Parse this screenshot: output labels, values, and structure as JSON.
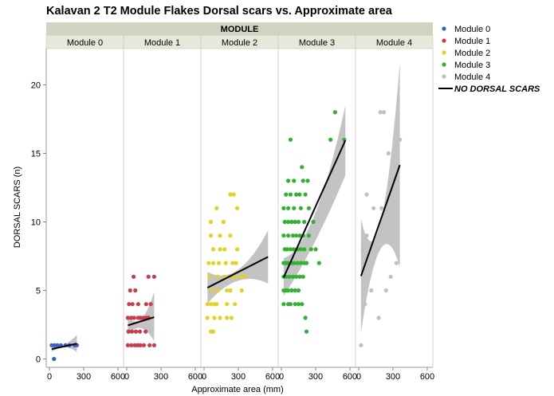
{
  "chart_data": {
    "type": "scatter",
    "title": "Kalavan 2 T2 Module Flakes Dorsal scars vs. Approximate area",
    "group_header": "MODULE",
    "xlabel": "Approximate area (mm)",
    "ylabel": "DORSAL SCARS (n)",
    "xlim": [
      0,
      750
    ],
    "ylim": [
      -0.5,
      23.5
    ],
    "x_ticks": [
      0,
      300,
      600
    ],
    "y_ticks": [
      0,
      5,
      10,
      15,
      20
    ],
    "grid": false,
    "legend_position": "right",
    "fit_legend_label": "NO DORSAL SCARS",
    "panels": [
      {
        "name": "Module 0",
        "color": "#3a5fcd",
        "points": [
          [
            40,
            0
          ],
          [
            20,
            1
          ],
          [
            45,
            1
          ],
          [
            70,
            1
          ],
          [
            100,
            1
          ],
          [
            140,
            1
          ],
          [
            175,
            1
          ],
          [
            220,
            1
          ],
          [
            240,
            1
          ]
        ],
        "fit": {
          "x0": 20,
          "x1": 240,
          "y0": 0.72,
          "y1": 1.12
        },
        "band": {
          "upper": [
            0.92,
            1.05,
            1.75
          ],
          "lower": [
            0.52,
            0.85,
            0.5
          ]
        }
      },
      {
        "name": "Module 1",
        "color": "#cd3a4a",
        "points": [
          [
            10,
            1
          ],
          [
            40,
            1
          ],
          [
            70,
            1
          ],
          [
            95,
            1
          ],
          [
            120,
            1
          ],
          [
            150,
            1
          ],
          [
            200,
            1
          ],
          [
            240,
            1
          ],
          [
            15,
            2
          ],
          [
            45,
            2
          ],
          [
            80,
            2
          ],
          [
            115,
            2
          ],
          [
            165,
            2
          ],
          [
            10,
            3
          ],
          [
            40,
            3
          ],
          [
            65,
            3
          ],
          [
            100,
            3
          ],
          [
            120,
            3
          ],
          [
            145,
            3
          ],
          [
            170,
            3
          ],
          [
            190,
            3
          ],
          [
            20,
            4
          ],
          [
            50,
            4
          ],
          [
            100,
            4
          ],
          [
            170,
            4
          ],
          [
            210,
            4
          ],
          [
            30,
            5
          ],
          [
            75,
            5
          ],
          [
            60,
            6
          ],
          [
            190,
            6
          ],
          [
            240,
            6
          ]
        ],
        "fit": {
          "x0": 10,
          "x1": 240,
          "y0": 2.45,
          "y1": 3.05
        },
        "band": {
          "upper": [
            3.15,
            2.9,
            4.9
          ],
          "lower": [
            1.75,
            2.25,
            1.3
          ]
        }
      },
      {
        "name": "Module 2",
        "color": "#e6d21e",
        "points": [
          [
            60,
            2
          ],
          [
            80,
            2
          ],
          [
            30,
            3
          ],
          [
            90,
            3
          ],
          [
            140,
            3
          ],
          [
            200,
            3
          ],
          [
            240,
            3
          ],
          [
            30,
            4
          ],
          [
            60,
            4
          ],
          [
            90,
            4
          ],
          [
            110,
            4
          ],
          [
            200,
            4
          ],
          [
            270,
            4
          ],
          [
            70,
            5
          ],
          [
            120,
            5
          ],
          [
            200,
            5
          ],
          [
            230,
            5
          ],
          [
            330,
            5
          ],
          [
            50,
            6
          ],
          [
            120,
            6
          ],
          [
            180,
            6
          ],
          [
            240,
            6
          ],
          [
            270,
            6
          ],
          [
            320,
            6
          ],
          [
            360,
            6
          ],
          [
            40,
            7
          ],
          [
            80,
            7
          ],
          [
            130,
            7
          ],
          [
            190,
            7
          ],
          [
            250,
            7
          ],
          [
            280,
            7
          ],
          [
            80,
            8
          ],
          [
            140,
            8
          ],
          [
            180,
            8
          ],
          [
            290,
            8
          ],
          [
            60,
            9
          ],
          [
            140,
            9
          ],
          [
            230,
            9
          ],
          [
            60,
            10
          ],
          [
            170,
            10
          ],
          [
            110,
            11
          ],
          [
            290,
            11
          ],
          [
            230,
            12
          ],
          [
            260,
            12
          ]
        ],
        "fit": {
          "x0": 30,
          "x1": 560,
          "y0": 5.2,
          "y1": 7.45
        },
        "band": {
          "upper": [
            6.35,
            6.5,
            9.4
          ],
          "lower": [
            4.05,
            5.7,
            5.5
          ]
        }
      },
      {
        "name": "Module 3",
        "color": "#2db52d",
        "points": [
          [
            20,
            4
          ],
          [
            60,
            4
          ],
          [
            80,
            4
          ],
          [
            120,
            4
          ],
          [
            150,
            4
          ],
          [
            180,
            4
          ],
          [
            20,
            5
          ],
          [
            40,
            5
          ],
          [
            60,
            5
          ],
          [
            90,
            5
          ],
          [
            120,
            5
          ],
          [
            150,
            5
          ],
          [
            20,
            6
          ],
          [
            40,
            6
          ],
          [
            70,
            6
          ],
          [
            100,
            6
          ],
          [
            130,
            6
          ],
          [
            160,
            6
          ],
          [
            190,
            6
          ],
          [
            20,
            7
          ],
          [
            40,
            7
          ],
          [
            60,
            7
          ],
          [
            90,
            7
          ],
          [
            110,
            7
          ],
          [
            140,
            7
          ],
          [
            170,
            7
          ],
          [
            200,
            7
          ],
          [
            220,
            7
          ],
          [
            330,
            7
          ],
          [
            30,
            8
          ],
          [
            50,
            8
          ],
          [
            80,
            8
          ],
          [
            110,
            8
          ],
          [
            140,
            8
          ],
          [
            170,
            8
          ],
          [
            200,
            8
          ],
          [
            260,
            8
          ],
          [
            300,
            8
          ],
          [
            20,
            9
          ],
          [
            60,
            9
          ],
          [
            100,
            9
          ],
          [
            130,
            9
          ],
          [
            160,
            9
          ],
          [
            190,
            9
          ],
          [
            240,
            9
          ],
          [
            30,
            10
          ],
          [
            60,
            10
          ],
          [
            90,
            10
          ],
          [
            120,
            10
          ],
          [
            150,
            10
          ],
          [
            200,
            10
          ],
          [
            280,
            10
          ],
          [
            20,
            11
          ],
          [
            60,
            11
          ],
          [
            110,
            11
          ],
          [
            170,
            11
          ],
          [
            240,
            11
          ],
          [
            40,
            12
          ],
          [
            80,
            12
          ],
          [
            130,
            12
          ],
          [
            160,
            12
          ],
          [
            210,
            12
          ],
          [
            60,
            13
          ],
          [
            110,
            13
          ],
          [
            190,
            13
          ],
          [
            230,
            13
          ],
          [
            180,
            14
          ],
          [
            80,
            16
          ],
          [
            430,
            16
          ],
          [
            550,
            16
          ],
          [
            470,
            18
          ],
          [
            220,
            2
          ],
          [
            210,
            3
          ]
        ],
        "fit": {
          "x0": 20,
          "x1": 560,
          "y0": 5.95,
          "y1": 15.95
        },
        "band": {
          "upper": [
            7.35,
            10.5,
            18.5
          ],
          "lower": [
            4.6,
            8.5,
            13.4
          ]
        }
      },
      {
        "name": "Module 4",
        "color": "#c0c0c0",
        "points": [
          [
            20,
            1
          ],
          [
            55,
            4
          ],
          [
            70,
            12
          ],
          [
            70,
            9
          ],
          [
            40,
            7
          ],
          [
            35,
            8
          ],
          [
            125,
            7
          ],
          [
            110,
            5
          ],
          [
            130,
            11
          ],
          [
            175,
            3
          ],
          [
            190,
            18
          ],
          [
            220,
            18
          ],
          [
            200,
            11
          ],
          [
            240,
            5
          ],
          [
            260,
            15
          ],
          [
            280,
            6
          ],
          [
            330,
            7
          ],
          [
            360,
            16
          ]
        ],
        "fit": {
          "x0": 20,
          "x1": 360,
          "y0": 6.05,
          "y1": 14.15
        },
        "band": {
          "upper": [
            10.2,
            9.95,
            21.6
          ],
          "lower": [
            1.9,
            8.0,
            6.7
          ]
        }
      }
    ]
  }
}
